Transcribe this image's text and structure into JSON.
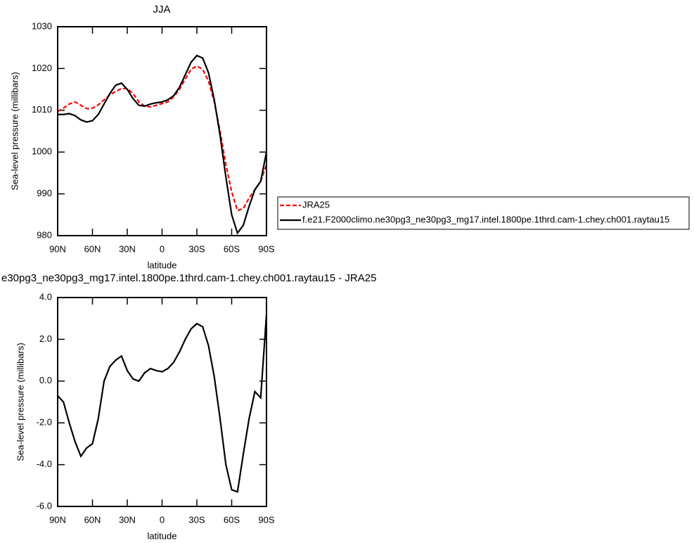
{
  "chart_data": [
    {
      "type": "line",
      "title": "JJA",
      "x_label": "latitude",
      "y_label": "Sea-level pressure (millibars)",
      "x": [
        90,
        85,
        80,
        75,
        70,
        65,
        60,
        55,
        50,
        45,
        40,
        35,
        30,
        25,
        20,
        15,
        10,
        5,
        0,
        -5,
        -10,
        -15,
        -20,
        -25,
        -30,
        -35,
        -40,
        -45,
        -50,
        -55,
        -60,
        -65,
        -70,
        -75,
        -80,
        -85,
        -90
      ],
      "series": [
        {
          "name": "JRA25",
          "color": "#ff0000",
          "linestyle": "dashed",
          "values": [
            1009.7,
            1010.5,
            1011.5,
            1012,
            1011.2,
            1010.4,
            1010.5,
            1011.3,
            1012.5,
            1013.7,
            1014.5,
            1015.2,
            1015.2,
            1014,
            1012,
            1011,
            1010.8,
            1011.2,
            1011.6,
            1012,
            1013.2,
            1015,
            1017.5,
            1019.8,
            1020.6,
            1019.8,
            1017,
            1012,
            1005,
            997,
            990.5,
            986,
            986.5,
            989,
            991,
            993,
            997
          ]
        },
        {
          "name": "f.e21.F2000climo.ne30pg3_ne30pg3_mg17.intel.1800pe.1thrd.cam-1.chey.ch001.raytau15",
          "color": "#000000",
          "linestyle": "solid",
          "values": [
            1009,
            1009,
            1009.2,
            1008.7,
            1007.7,
            1007.2,
            1007.5,
            1009,
            1011.5,
            1014,
            1016,
            1016.5,
            1015,
            1012.8,
            1011.2,
            1011,
            1011.5,
            1011.8,
            1012,
            1012.5,
            1013.5,
            1015.5,
            1018.5,
            1021.5,
            1023.1,
            1022.5,
            1019,
            1012.5,
            1004,
            994,
            985,
            980.6,
            982.5,
            987,
            991,
            993,
            1000
          ]
        }
      ],
      "xlim": [
        90,
        -90
      ],
      "xticks": [
        {
          "value": 90,
          "label": "90N"
        },
        {
          "value": 60,
          "label": "60N"
        },
        {
          "value": 30,
          "label": "30N"
        },
        0,
        {
          "value": -30,
          "label": "30S"
        },
        {
          "value": -60,
          "label": "60S"
        },
        {
          "value": -90,
          "label": "90S"
        }
      ],
      "ylim": [
        980,
        1030
      ],
      "yticks": [
        980,
        990,
        1000,
        1010,
        1020,
        1030
      ],
      "legend": "right"
    },
    {
      "type": "line",
      "title": "e30pg3_ne30pg3_mg17.intel.1800pe.1thrd.cam-1.chey.ch001.raytau15 - JRA25",
      "x_label": "latitude",
      "y_label": "Sea-level pressure (millibars)",
      "x": [
        90,
        85,
        80,
        75,
        70,
        65,
        60,
        55,
        50,
        45,
        40,
        35,
        30,
        25,
        20,
        15,
        10,
        5,
        0,
        -5,
        -10,
        -15,
        -20,
        -25,
        -30,
        -35,
        -40,
        -45,
        -50,
        -55,
        -60,
        -65,
        -70,
        -75,
        -80,
        -85,
        -90
      ],
      "series": [
        {
          "color": "#000000",
          "linestyle": "solid",
          "values": [
            -0.7,
            -1.0,
            -2.0,
            -2.9,
            -3.6,
            -3.2,
            -3.0,
            -1.8,
            0.0,
            0.7,
            1.0,
            1.2,
            0.5,
            0.1,
            0.0,
            0.4,
            0.6,
            0.5,
            0.45,
            0.6,
            0.9,
            1.4,
            2.0,
            2.5,
            2.75,
            2.6,
            1.7,
            0.2,
            -1.8,
            -4.0,
            -5.2,
            -5.3,
            -3.5,
            -1.8,
            -0.5,
            -0.8,
            3.2
          ]
        }
      ],
      "xlim": [
        90,
        -90
      ],
      "xticks": [
        {
          "value": 90,
          "label": "90N"
        },
        {
          "value": 60,
          "label": "60N"
        },
        {
          "value": 30,
          "label": "30N"
        },
        0,
        {
          "value": -30,
          "label": "30S"
        },
        {
          "value": -60,
          "label": "60S"
        },
        {
          "value": -90,
          "label": "90S"
        }
      ],
      "ylim": [
        -6,
        4
      ],
      "yticks": [
        {
          "value": -6,
          "label": "-6.0"
        },
        {
          "value": -4,
          "label": "-4.0"
        },
        {
          "value": -2,
          "label": "-2.0"
        },
        {
          "value": 0,
          "label": "0.0"
        },
        {
          "value": 2,
          "label": "2.0"
        },
        {
          "value": 4,
          "label": "4.0"
        }
      ]
    }
  ]
}
